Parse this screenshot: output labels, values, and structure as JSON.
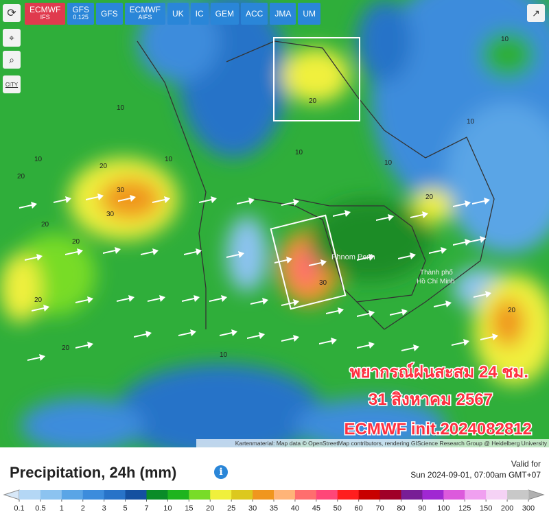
{
  "toolbar": {
    "models": [
      {
        "name": "ECMWF",
        "sub": "IFS"
      },
      {
        "name": "GFS",
        "sub": "0.125"
      },
      {
        "name": "GFS"
      },
      {
        "name": "ECMWF",
        "sub": "AIFS"
      },
      {
        "name": "UK"
      },
      {
        "name": "IC"
      },
      {
        "name": "GEM"
      },
      {
        "name": "ACC"
      },
      {
        "name": "JMA"
      },
      {
        "name": "UM"
      }
    ],
    "city": "CITY"
  },
  "map": {
    "overlay": [
      "พยากรณ์ฝนสะสม 24 ชม.",
      "31 สิงหาคม 2567",
      "ECMWF init.2024082812"
    ],
    "places": [
      "Phnom Penh",
      "Thành phố",
      "Hồ Chí Minh"
    ],
    "contour_labels": [
      "10",
      "10",
      "10",
      "20",
      "20",
      "30",
      "30",
      "20",
      "20",
      "20",
      "10",
      "10",
      "20",
      "30",
      "20",
      "10",
      "10",
      "20",
      "20",
      "10"
    ],
    "attribution": "Kartenmaterial: Map data © OpenStreetMap contributors, rendering GIScience Research Group @ Heidelberg University"
  },
  "legend": {
    "title": "Precipitation, 24h (mm)",
    "info": "i",
    "valid_label": "Valid for",
    "valid_time": "Sun 2024-09-01, 07:00am GMT+07",
    "ticks": [
      0.1,
      0.5,
      1,
      2,
      3,
      5,
      7,
      10,
      15,
      20,
      25,
      30,
      35,
      40,
      45,
      50,
      60,
      70,
      80,
      90,
      100,
      125,
      150,
      200,
      300
    ],
    "colors": [
      "#b4d7f5",
      "#8cc3f0",
      "#5aa5e6",
      "#3c8cdc",
      "#2873c8",
      "#1450a0",
      "#0a8c28",
      "#1eb41e",
      "#78dc28",
      "#f0f03c",
      "#dcc81e",
      "#f0961e",
      "#ffb478",
      "#ff6e6e",
      "#ff4678",
      "#ff1e1e",
      "#c80000",
      "#a00028",
      "#781e96",
      "#a028d2",
      "#dc5adc",
      "#f0a0f0",
      "#f5d2f5",
      "#c8c8c8"
    ]
  }
}
